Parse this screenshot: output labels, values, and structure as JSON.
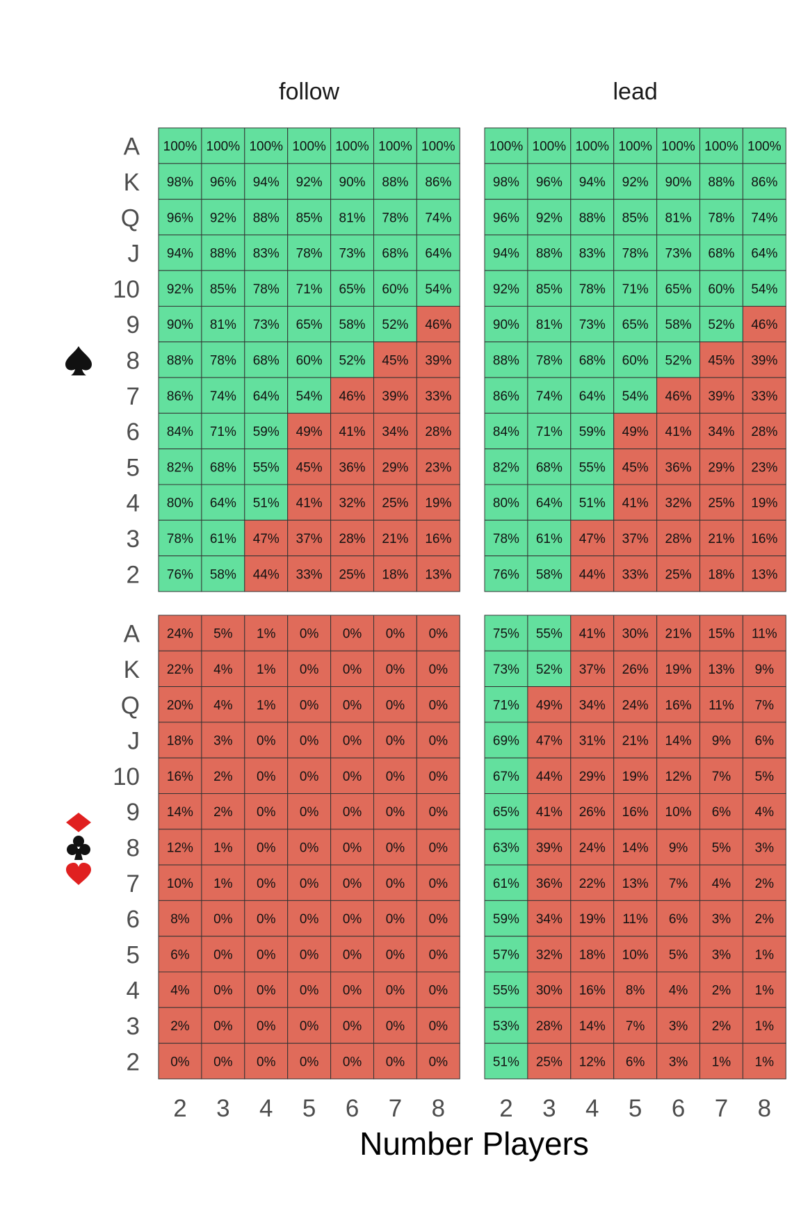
{
  "chart_data": {
    "type": "heatmap",
    "xlabel": "Number Players",
    "x": [
      "2",
      "3",
      "4",
      "5",
      "6",
      "7",
      "8"
    ],
    "y": [
      "A",
      "K",
      "Q",
      "J",
      "10",
      "9",
      "8",
      "7",
      "6",
      "5",
      "4",
      "3",
      "2"
    ],
    "columns": [
      "follow",
      "lead"
    ],
    "row_groups": [
      {
        "icon": "spade-icon",
        "suits": [
          "spade"
        ]
      },
      {
        "icon": "diamond-club-heart-icon",
        "suits": [
          "diamond",
          "club",
          "heart"
        ]
      }
    ],
    "color_rule": "green when value >= 50%, red when value < 50%",
    "colors": {
      "high": "#63e09e",
      "low": "#e06b5a",
      "border": "#333333",
      "text": "#111111",
      "axis_text": "#4d4d4d"
    },
    "panels": [
      {
        "column": "follow",
        "row_group": 0,
        "values": [
          [
            100,
            100,
            100,
            100,
            100,
            100,
            100
          ],
          [
            98,
            96,
            94,
            92,
            90,
            88,
            86
          ],
          [
            96,
            92,
            88,
            85,
            81,
            78,
            74
          ],
          [
            94,
            88,
            83,
            78,
            73,
            68,
            64
          ],
          [
            92,
            85,
            78,
            71,
            65,
            60,
            54
          ],
          [
            90,
            81,
            73,
            65,
            58,
            52,
            46
          ],
          [
            88,
            78,
            68,
            60,
            52,
            45,
            39
          ],
          [
            86,
            74,
            64,
            54,
            46,
            39,
            33
          ],
          [
            84,
            71,
            59,
            49,
            41,
            34,
            28
          ],
          [
            82,
            68,
            55,
            45,
            36,
            29,
            23
          ],
          [
            80,
            64,
            51,
            41,
            32,
            25,
            19
          ],
          [
            78,
            61,
            47,
            37,
            28,
            21,
            16
          ],
          [
            76,
            58,
            44,
            33,
            25,
            18,
            13
          ]
        ]
      },
      {
        "column": "lead",
        "row_group": 0,
        "values": [
          [
            100,
            100,
            100,
            100,
            100,
            100,
            100
          ],
          [
            98,
            96,
            94,
            92,
            90,
            88,
            86
          ],
          [
            96,
            92,
            88,
            85,
            81,
            78,
            74
          ],
          [
            94,
            88,
            83,
            78,
            73,
            68,
            64
          ],
          [
            92,
            85,
            78,
            71,
            65,
            60,
            54
          ],
          [
            90,
            81,
            73,
            65,
            58,
            52,
            46
          ],
          [
            88,
            78,
            68,
            60,
            52,
            45,
            39
          ],
          [
            86,
            74,
            64,
            54,
            46,
            39,
            33
          ],
          [
            84,
            71,
            59,
            49,
            41,
            34,
            28
          ],
          [
            82,
            68,
            55,
            45,
            36,
            29,
            23
          ],
          [
            80,
            64,
            51,
            41,
            32,
            25,
            19
          ],
          [
            78,
            61,
            47,
            37,
            28,
            21,
            16
          ],
          [
            76,
            58,
            44,
            33,
            25,
            18,
            13
          ]
        ]
      },
      {
        "column": "follow",
        "row_group": 1,
        "values": [
          [
            24,
            5,
            1,
            0,
            0,
            0,
            0
          ],
          [
            22,
            4,
            1,
            0,
            0,
            0,
            0
          ],
          [
            20,
            4,
            1,
            0,
            0,
            0,
            0
          ],
          [
            18,
            3,
            0,
            0,
            0,
            0,
            0
          ],
          [
            16,
            2,
            0,
            0,
            0,
            0,
            0
          ],
          [
            14,
            2,
            0,
            0,
            0,
            0,
            0
          ],
          [
            12,
            1,
            0,
            0,
            0,
            0,
            0
          ],
          [
            10,
            1,
            0,
            0,
            0,
            0,
            0
          ],
          [
            8,
            0,
            0,
            0,
            0,
            0,
            0
          ],
          [
            6,
            0,
            0,
            0,
            0,
            0,
            0
          ],
          [
            4,
            0,
            0,
            0,
            0,
            0,
            0
          ],
          [
            2,
            0,
            0,
            0,
            0,
            0,
            0
          ],
          [
            0,
            0,
            0,
            0,
            0,
            0,
            0
          ]
        ]
      },
      {
        "column": "lead",
        "row_group": 1,
        "values": [
          [
            75,
            55,
            41,
            30,
            21,
            15,
            11
          ],
          [
            73,
            52,
            37,
            26,
            19,
            13,
            9
          ],
          [
            71,
            49,
            34,
            24,
            16,
            11,
            7
          ],
          [
            69,
            47,
            31,
            21,
            14,
            9,
            6
          ],
          [
            67,
            44,
            29,
            19,
            12,
            7,
            5
          ],
          [
            65,
            41,
            26,
            16,
            10,
            6,
            4
          ],
          [
            63,
            39,
            24,
            14,
            9,
            5,
            3
          ],
          [
            61,
            36,
            22,
            13,
            7,
            4,
            2
          ],
          [
            59,
            34,
            19,
            11,
            6,
            3,
            2
          ],
          [
            57,
            32,
            18,
            10,
            5,
            3,
            1
          ],
          [
            55,
            30,
            16,
            8,
            4,
            2,
            1
          ],
          [
            53,
            28,
            14,
            7,
            3,
            2,
            1
          ],
          [
            51,
            25,
            12,
            6,
            3,
            1,
            1
          ]
        ]
      }
    ]
  }
}
